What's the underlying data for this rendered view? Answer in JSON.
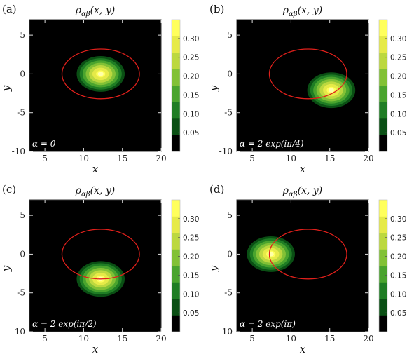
{
  "chart_data": [
    {
      "type": "heatmap",
      "panel_label": "(a)",
      "title": "ρ_αβ(x, y)",
      "xlabel": "x",
      "ylabel": "y",
      "xlim": [
        3,
        20
      ],
      "ylim": [
        -10,
        7
      ],
      "x_ticks": [
        "5",
        "10",
        "15",
        "20"
      ],
      "y_ticks": [
        "5",
        "0",
        "-5",
        "-10"
      ],
      "annotation": "α = 0",
      "blob_center": [
        12.2,
        0
      ],
      "blob_radius": [
        3.1,
        2.3
      ],
      "peak": 0.33,
      "circle_center": [
        12.2,
        0
      ],
      "circle_radius": [
        5.0,
        3.2
      ],
      "colorbar": {
        "ticks": [
          "0.05",
          "0.10",
          "0.15",
          "0.20",
          "0.25",
          "0.30"
        ],
        "range": [
          0,
          0.35
        ]
      }
    },
    {
      "type": "heatmap",
      "panel_label": "(b)",
      "title": "ρ_αβ(x, y)",
      "xlabel": "x",
      "ylabel": "y",
      "xlim": [
        3,
        20
      ],
      "ylim": [
        -10,
        7
      ],
      "x_ticks": [
        "5",
        "10",
        "15",
        "20"
      ],
      "y_ticks": [
        "5",
        "0",
        "-5",
        "-10"
      ],
      "annotation": "α = 2 exp(iπ/4)",
      "blob_center": [
        15.2,
        -2.1
      ],
      "blob_radius": [
        3.1,
        2.3
      ],
      "peak": 0.33,
      "circle_center": [
        12.2,
        0
      ],
      "circle_radius": [
        5.0,
        3.2
      ],
      "colorbar": {
        "ticks": [
          "0.05",
          "0.10",
          "0.15",
          "0.20",
          "0.25",
          "0.30"
        ],
        "range": [
          0,
          0.35
        ]
      }
    },
    {
      "type": "heatmap",
      "panel_label": "(c)",
      "title": "ρ_αβ(x, y)",
      "xlabel": "x",
      "ylabel": "y",
      "xlim": [
        3,
        20
      ],
      "ylim": [
        -10,
        7
      ],
      "x_ticks": [
        "5",
        "10",
        "15",
        "20"
      ],
      "y_ticks": [
        "5",
        "0",
        "-5",
        "-10"
      ],
      "annotation": "α = 2 exp(iπ/2)",
      "blob_center": [
        12.2,
        -3.2
      ],
      "blob_radius": [
        3.1,
        2.3
      ],
      "peak": 0.33,
      "circle_center": [
        12.2,
        0
      ],
      "circle_radius": [
        5.0,
        3.2
      ],
      "colorbar": {
        "ticks": [
          "0.05",
          "0.10",
          "0.15",
          "0.20",
          "0.25",
          "0.30"
        ],
        "range": [
          0,
          0.35
        ]
      }
    },
    {
      "type": "heatmap",
      "panel_label": "(d)",
      "title": "ρ_αβ(x, y)",
      "xlabel": "x",
      "ylabel": "y",
      "xlim": [
        3,
        20
      ],
      "ylim": [
        -10,
        7
      ],
      "x_ticks": [
        "5",
        "10",
        "15",
        "20"
      ],
      "y_ticks": [
        "5",
        "0",
        "-5",
        "-10"
      ],
      "annotation": "α = 2 exp(iπ)",
      "blob_center": [
        7.4,
        0
      ],
      "blob_radius": [
        3.1,
        2.3
      ],
      "peak": 0.33,
      "circle_center": [
        12.2,
        0
      ],
      "circle_radius": [
        5.0,
        3.2
      ],
      "colorbar": {
        "ticks": [
          "0.05",
          "0.10",
          "0.15",
          "0.20",
          "0.25",
          "0.30"
        ],
        "range": [
          0,
          0.35
        ]
      }
    }
  ],
  "colors": {
    "background": "#000000",
    "circle": "#e0201b",
    "levels": [
      "#000000",
      "#0a4f14",
      "#1f7d24",
      "#4aa42e",
      "#82c136",
      "#bcd83f",
      "#e6ea48",
      "#ffff5c"
    ]
  }
}
